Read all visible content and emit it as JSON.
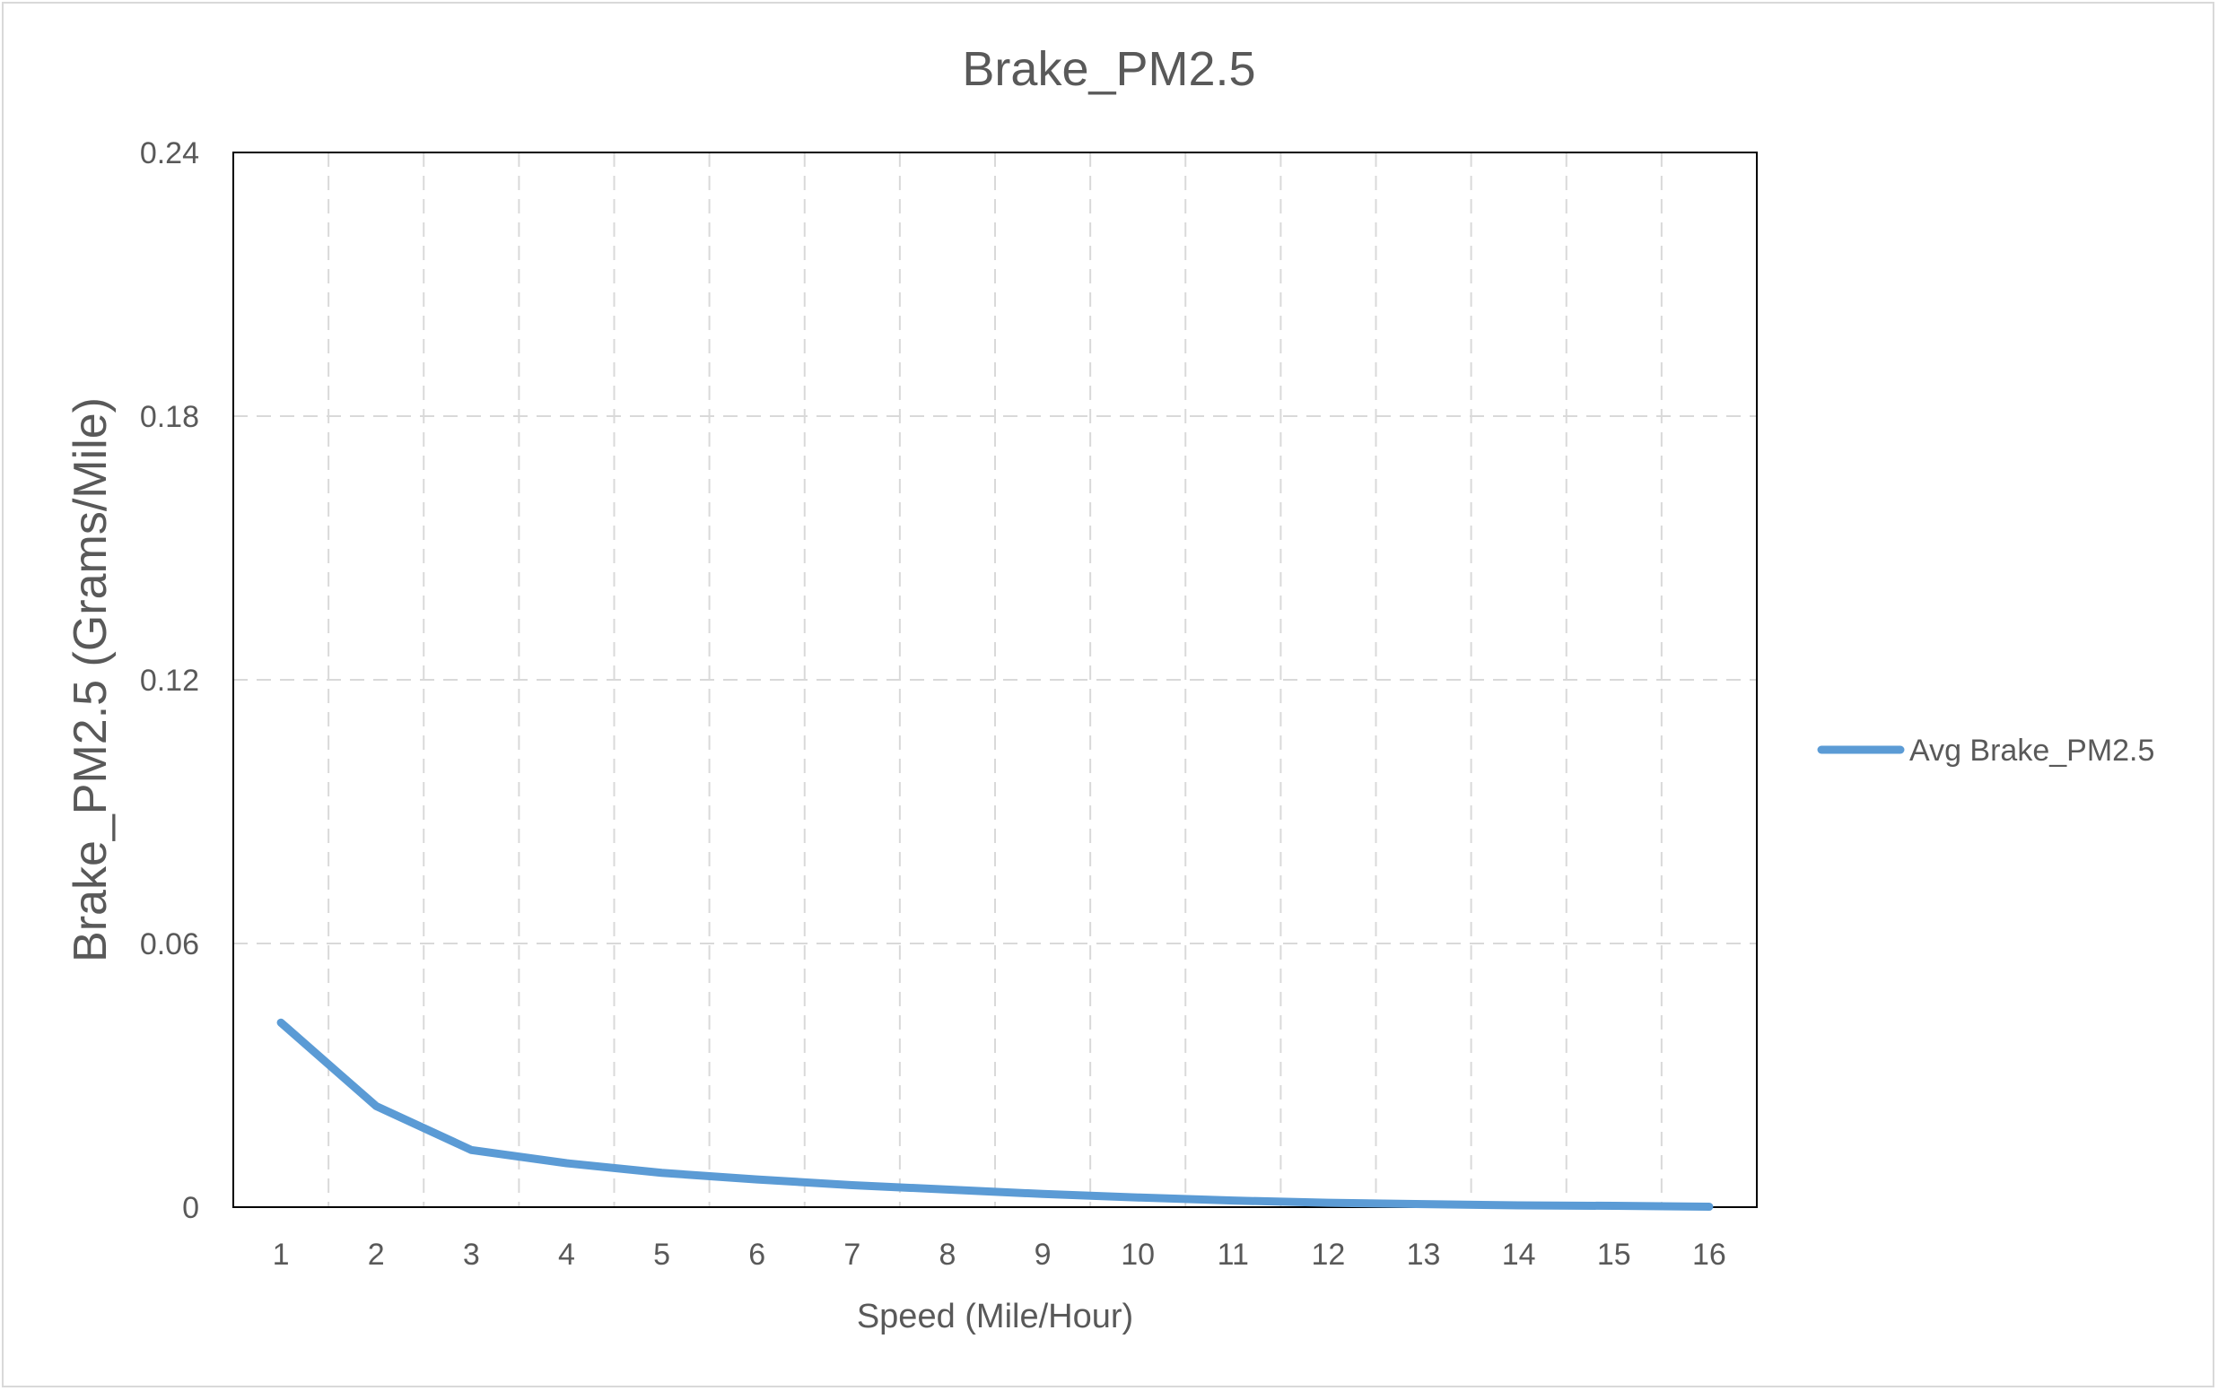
{
  "chart_data": {
    "type": "line",
    "title": "Brake_PM2.5",
    "xlabel": "Speed (Mile/Hour)",
    "ylabel": "Brake_PM2.5 (Grams/Mile)",
    "categories": [
      "1",
      "2",
      "3",
      "4",
      "5",
      "6",
      "7",
      "8",
      "9",
      "10",
      "11",
      "12",
      "13",
      "14",
      "15",
      "16"
    ],
    "ylim": [
      0,
      0.24
    ],
    "yticks": [
      "0",
      "0.06",
      "0.12",
      "0.18",
      "0.24"
    ],
    "grid": true,
    "legend_position": "right",
    "series": [
      {
        "name": "Avg Brake_PM2.5",
        "color": "#5b9bd5",
        "values": [
          0.042,
          0.023,
          0.013,
          0.01,
          0.0078,
          0.0063,
          0.005,
          0.004,
          0.003,
          0.0022,
          0.0015,
          0.001,
          0.0007,
          0.0004,
          0.0003,
          0.0001
        ]
      }
    ]
  }
}
